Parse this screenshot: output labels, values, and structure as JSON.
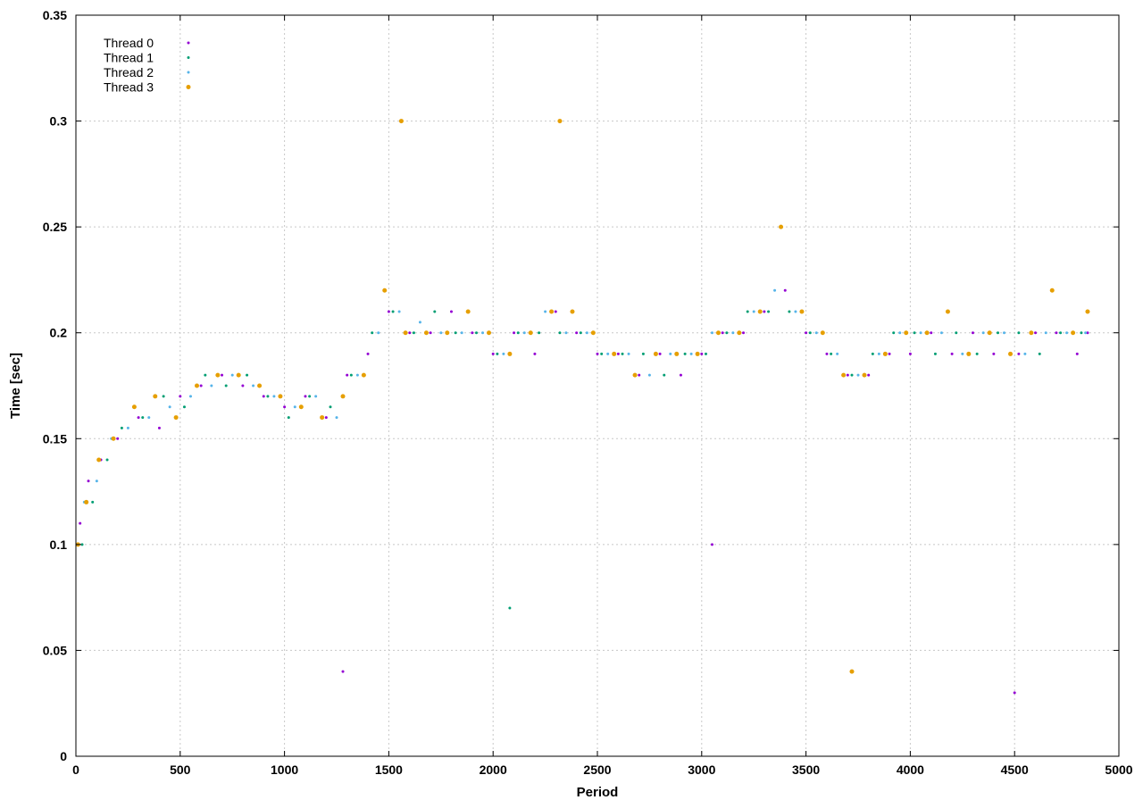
{
  "chart_data": {
    "type": "scatter",
    "title": "",
    "xlabel": "Period",
    "ylabel": "Time [sec]",
    "xlim": [
      0,
      5000
    ],
    "ylim": [
      0,
      0.35
    ],
    "x_ticks": [
      0,
      500,
      1000,
      1500,
      2000,
      2500,
      3000,
      3500,
      4000,
      4500,
      5000
    ],
    "x_tick_labels": [
      "0",
      "500",
      "1000",
      "1500",
      "2000",
      "2500",
      "3000",
      "3500",
      "4000",
      "4500",
      "5000"
    ],
    "y_ticks": [
      0,
      0.05,
      0.1,
      0.15,
      0.2,
      0.25,
      0.3,
      0.35
    ],
    "y_tick_labels": [
      "0",
      "0.05",
      "0.1",
      "0.15",
      "0.2",
      "0.25",
      "0.3",
      "0.35"
    ],
    "grid": true,
    "legend_position": "top-left",
    "series": [
      {
        "name": "Thread 0",
        "color": "#9400d3",
        "marker_size": 1.5,
        "points": [
          [
            20,
            0.11
          ],
          [
            60,
            0.13
          ],
          [
            120,
            0.14
          ],
          [
            200,
            0.15
          ],
          [
            300,
            0.16
          ],
          [
            400,
            0.155
          ],
          [
            500,
            0.17
          ],
          [
            600,
            0.175
          ],
          [
            700,
            0.18
          ],
          [
            800,
            0.175
          ],
          [
            900,
            0.17
          ],
          [
            1000,
            0.165
          ],
          [
            1100,
            0.17
          ],
          [
            1200,
            0.16
          ],
          [
            1280,
            0.04
          ],
          [
            1300,
            0.18
          ],
          [
            1400,
            0.19
          ],
          [
            1500,
            0.21
          ],
          [
            1600,
            0.2
          ],
          [
            1700,
            0.2
          ],
          [
            1800,
            0.21
          ],
          [
            1900,
            0.2
          ],
          [
            2000,
            0.19
          ],
          [
            2100,
            0.2
          ],
          [
            2200,
            0.19
          ],
          [
            2300,
            0.21
          ],
          [
            2400,
            0.2
          ],
          [
            2500,
            0.19
          ],
          [
            2600,
            0.19
          ],
          [
            2700,
            0.18
          ],
          [
            2800,
            0.19
          ],
          [
            2900,
            0.18
          ],
          [
            3000,
            0.19
          ],
          [
            3050,
            0.1
          ],
          [
            3100,
            0.2
          ],
          [
            3200,
            0.2
          ],
          [
            3300,
            0.21
          ],
          [
            3400,
            0.22
          ],
          [
            3500,
            0.2
          ],
          [
            3600,
            0.19
          ],
          [
            3700,
            0.18
          ],
          [
            3800,
            0.18
          ],
          [
            3900,
            0.19
          ],
          [
            4000,
            0.19
          ],
          [
            4100,
            0.2
          ],
          [
            4200,
            0.19
          ],
          [
            4300,
            0.2
          ],
          [
            4400,
            0.19
          ],
          [
            4500,
            0.03
          ],
          [
            4520,
            0.19
          ],
          [
            4600,
            0.2
          ],
          [
            4700,
            0.2
          ],
          [
            4800,
            0.19
          ],
          [
            4850,
            0.2
          ]
        ]
      },
      {
        "name": "Thread 1",
        "color": "#009e73",
        "marker_size": 1.5,
        "points": [
          [
            30,
            0.1
          ],
          [
            80,
            0.12
          ],
          [
            150,
            0.14
          ],
          [
            220,
            0.155
          ],
          [
            320,
            0.16
          ],
          [
            420,
            0.17
          ],
          [
            520,
            0.165
          ],
          [
            620,
            0.18
          ],
          [
            720,
            0.175
          ],
          [
            820,
            0.18
          ],
          [
            920,
            0.17
          ],
          [
            1020,
            0.16
          ],
          [
            1120,
            0.17
          ],
          [
            1220,
            0.165
          ],
          [
            1320,
            0.18
          ],
          [
            1420,
            0.2
          ],
          [
            1520,
            0.21
          ],
          [
            1620,
            0.2
          ],
          [
            1720,
            0.21
          ],
          [
            1820,
            0.2
          ],
          [
            1920,
            0.2
          ],
          [
            2020,
            0.19
          ],
          [
            2080,
            0.07
          ],
          [
            2120,
            0.2
          ],
          [
            2220,
            0.2
          ],
          [
            2320,
            0.2
          ],
          [
            2420,
            0.2
          ],
          [
            2520,
            0.19
          ],
          [
            2620,
            0.19
          ],
          [
            2720,
            0.19
          ],
          [
            2820,
            0.18
          ],
          [
            2920,
            0.19
          ],
          [
            3020,
            0.19
          ],
          [
            3120,
            0.2
          ],
          [
            3220,
            0.21
          ],
          [
            3320,
            0.21
          ],
          [
            3420,
            0.21
          ],
          [
            3520,
            0.2
          ],
          [
            3620,
            0.19
          ],
          [
            3720,
            0.18
          ],
          [
            3820,
            0.19
          ],
          [
            3920,
            0.2
          ],
          [
            4020,
            0.2
          ],
          [
            4120,
            0.19
          ],
          [
            4220,
            0.2
          ],
          [
            4320,
            0.19
          ],
          [
            4420,
            0.2
          ],
          [
            4520,
            0.2
          ],
          [
            4620,
            0.19
          ],
          [
            4720,
            0.2
          ],
          [
            4820,
            0.2
          ]
        ]
      },
      {
        "name": "Thread 2",
        "color": "#56b4e9",
        "marker_size": 1.5,
        "points": [
          [
            40,
            0.12
          ],
          [
            100,
            0.13
          ],
          [
            170,
            0.15
          ],
          [
            250,
            0.155
          ],
          [
            350,
            0.16
          ],
          [
            450,
            0.165
          ],
          [
            550,
            0.17
          ],
          [
            650,
            0.175
          ],
          [
            750,
            0.18
          ],
          [
            850,
            0.175
          ],
          [
            950,
            0.17
          ],
          [
            1050,
            0.165
          ],
          [
            1150,
            0.17
          ],
          [
            1250,
            0.16
          ],
          [
            1350,
            0.18
          ],
          [
            1450,
            0.2
          ],
          [
            1550,
            0.21
          ],
          [
            1650,
            0.205
          ],
          [
            1750,
            0.2
          ],
          [
            1850,
            0.2
          ],
          [
            1950,
            0.2
          ],
          [
            2050,
            0.19
          ],
          [
            2150,
            0.2
          ],
          [
            2250,
            0.21
          ],
          [
            2350,
            0.2
          ],
          [
            2450,
            0.2
          ],
          [
            2550,
            0.19
          ],
          [
            2650,
            0.19
          ],
          [
            2750,
            0.18
          ],
          [
            2850,
            0.19
          ],
          [
            2950,
            0.19
          ],
          [
            3050,
            0.2
          ],
          [
            3150,
            0.2
          ],
          [
            3250,
            0.21
          ],
          [
            3350,
            0.22
          ],
          [
            3450,
            0.21
          ],
          [
            3550,
            0.2
          ],
          [
            3650,
            0.19
          ],
          [
            3750,
            0.18
          ],
          [
            3850,
            0.19
          ],
          [
            3950,
            0.2
          ],
          [
            4050,
            0.2
          ],
          [
            4150,
            0.2
          ],
          [
            4250,
            0.19
          ],
          [
            4350,
            0.2
          ],
          [
            4450,
            0.2
          ],
          [
            4550,
            0.19
          ],
          [
            4650,
            0.2
          ],
          [
            4750,
            0.2
          ],
          [
            4840,
            0.2
          ]
        ]
      },
      {
        "name": "Thread 3",
        "color": "#e69f00",
        "marker_size": 2.5,
        "points": [
          [
            10,
            0.1
          ],
          [
            50,
            0.12
          ],
          [
            110,
            0.14
          ],
          [
            180,
            0.15
          ],
          [
            280,
            0.165
          ],
          [
            380,
            0.17
          ],
          [
            480,
            0.16
          ],
          [
            580,
            0.175
          ],
          [
            680,
            0.18
          ],
          [
            780,
            0.18
          ],
          [
            880,
            0.175
          ],
          [
            980,
            0.17
          ],
          [
            1080,
            0.165
          ],
          [
            1180,
            0.16
          ],
          [
            1280,
            0.17
          ],
          [
            1380,
            0.18
          ],
          [
            1480,
            0.22
          ],
          [
            1560,
            0.3
          ],
          [
            1580,
            0.2
          ],
          [
            1680,
            0.2
          ],
          [
            1780,
            0.2
          ],
          [
            1880,
            0.21
          ],
          [
            1980,
            0.2
          ],
          [
            2080,
            0.19
          ],
          [
            2180,
            0.2
          ],
          [
            2280,
            0.21
          ],
          [
            2320,
            0.3
          ],
          [
            2380,
            0.21
          ],
          [
            2480,
            0.2
          ],
          [
            2580,
            0.19
          ],
          [
            2680,
            0.18
          ],
          [
            2780,
            0.19
          ],
          [
            2880,
            0.19
          ],
          [
            2980,
            0.19
          ],
          [
            3080,
            0.2
          ],
          [
            3180,
            0.2
          ],
          [
            3280,
            0.21
          ],
          [
            3380,
            0.25
          ],
          [
            3480,
            0.21
          ],
          [
            3580,
            0.2
          ],
          [
            3680,
            0.18
          ],
          [
            3720,
            0.04
          ],
          [
            3780,
            0.18
          ],
          [
            3880,
            0.19
          ],
          [
            3980,
            0.2
          ],
          [
            4080,
            0.2
          ],
          [
            4180,
            0.21
          ],
          [
            4280,
            0.19
          ],
          [
            4380,
            0.2
          ],
          [
            4480,
            0.19
          ],
          [
            4580,
            0.2
          ],
          [
            4680,
            0.22
          ],
          [
            4780,
            0.2
          ],
          [
            4850,
            0.21
          ]
        ]
      }
    ]
  }
}
